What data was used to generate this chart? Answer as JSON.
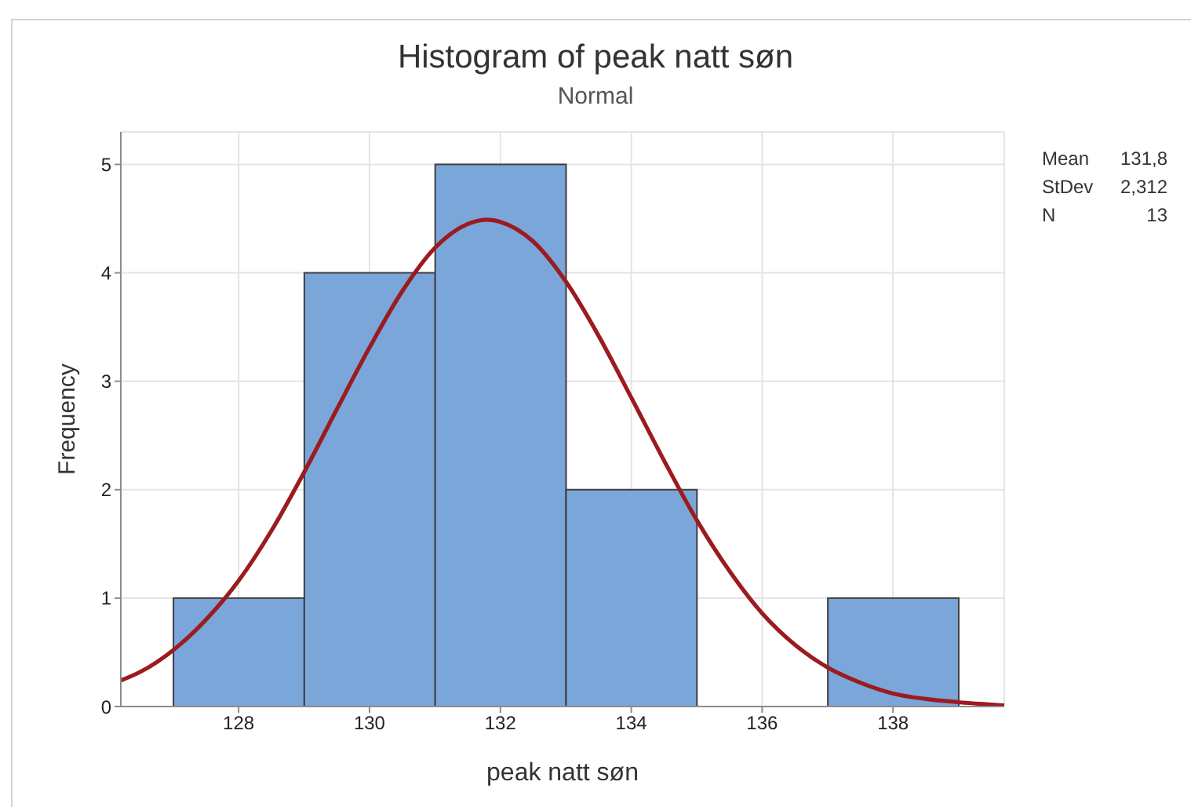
{
  "chart_data": {
    "type": "histogram",
    "title": "Histogram of peak natt søn",
    "subtitle": "Normal",
    "xlabel": "peak natt søn",
    "ylabel": "Frequency",
    "bins": [
      127,
      129,
      131,
      133,
      135,
      137,
      139
    ],
    "series": [
      {
        "color": "#7ba6da",
        "values": [
          1,
          4,
          5,
          2,
          0,
          1
        ]
      },
      {
        "type": "line",
        "color": "#9b1b1e",
        "x": [
          126.2,
          126.5,
          127,
          127.5,
          128,
          128.5,
          129,
          129.5,
          130,
          130.5,
          131,
          131.5,
          131.8,
          132,
          132.5,
          133,
          133.5,
          134,
          134.5,
          135,
          135.5,
          136,
          136.5,
          137,
          137.5,
          138,
          138.5,
          139,
          139.7
        ],
        "values": [
          0.24,
          0.32,
          0.52,
          0.8,
          1.16,
          1.62,
          2.16,
          2.74,
          3.31,
          3.83,
          4.23,
          4.45,
          4.49,
          4.47,
          4.29,
          3.92,
          3.42,
          2.85,
          2.27,
          1.72,
          1.25,
          0.86,
          0.57,
          0.36,
          0.22,
          0.12,
          0.07,
          0.04,
          0.01
        ]
      }
    ],
    "xlim": [
      126.2,
      139.7
    ],
    "ylim": [
      0,
      5.3
    ],
    "xticks": [
      128,
      130,
      132,
      134,
      136,
      138
    ],
    "yticks": [
      0,
      1,
      2,
      3,
      4,
      5
    ],
    "grid": true,
    "annotations": [
      "Mean 131,8",
      "StDev 2,312",
      "N 13"
    ]
  }
}
